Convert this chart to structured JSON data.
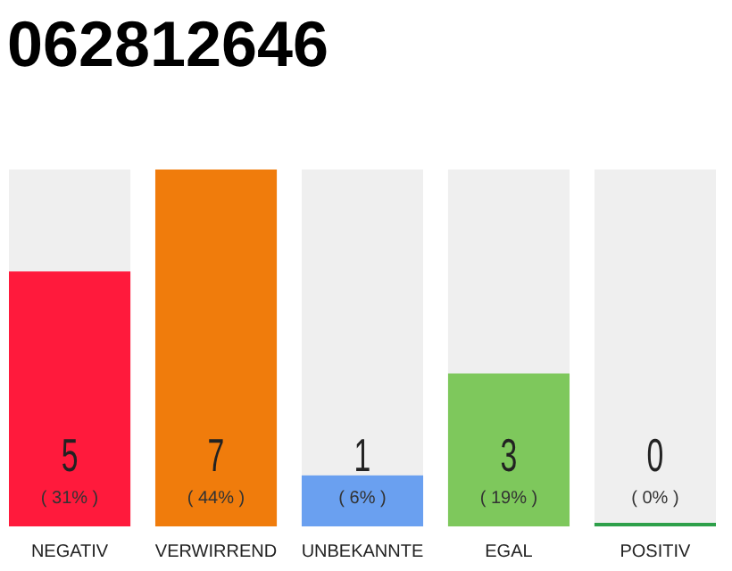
{
  "chart_data": {
    "type": "bar",
    "title": "062812646",
    "categories": [
      "NEGATIV",
      "VERWIRREND",
      "UNBEKANNTE",
      "EGAL",
      "POSITIV"
    ],
    "values": [
      5,
      7,
      1,
      3,
      0
    ],
    "colors": [
      "#ff1a3c",
      "#f07c0c",
      "#6aa0f0",
      "#7ec85c",
      "#2ea04a"
    ],
    "ylim": [
      0,
      7
    ],
    "tick_labels": "x",
    "data_labels": true,
    "annotations": [
      "( 31% )",
      "( 44% )",
      "( 6% )",
      "( 19% )",
      "( 0% )"
    ]
  }
}
